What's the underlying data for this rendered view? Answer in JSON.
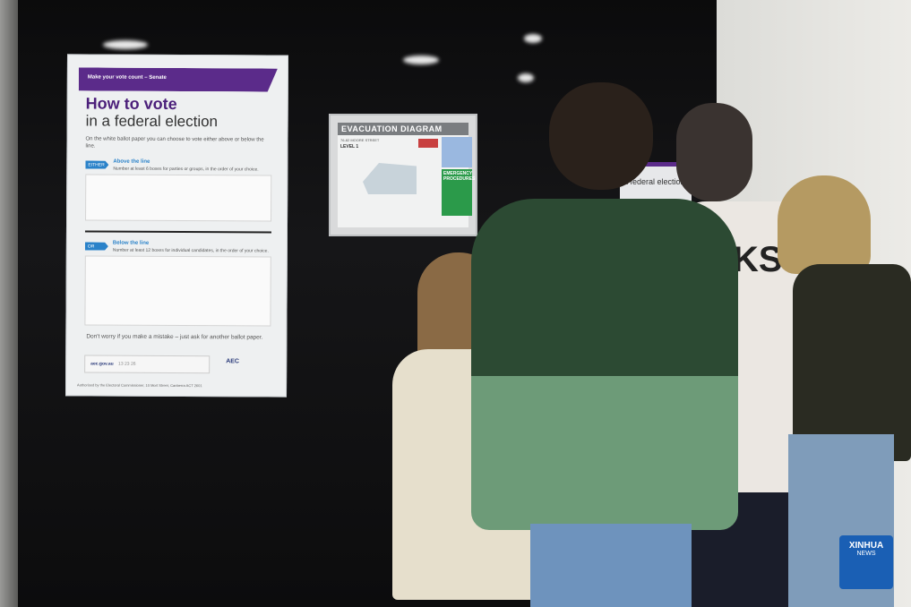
{
  "poster": {
    "band": "Make your vote count – Senate",
    "title": "How to vote",
    "subtitle": "in a federal election",
    "intro": "On the white ballot paper you can choose to vote either above or below the line.",
    "option1_tag": "EITHER",
    "option1_heading": "Above the line",
    "option1_text": "Number at least 6 boxes for parties or groups, in the order of your choice.",
    "option2_tag": "OR",
    "option2_heading": "Below the line",
    "option2_text": "Number at least 12 boxes for individual candidates, in the order of your choice.",
    "mistake": "Don't worry if you make a mistake – just ask for another ballot paper.",
    "website": "aec.gov.au",
    "phone": "13 23 26",
    "logo": "AEC",
    "authorised": "Authorised by the Electoral Commissioner, 10 Mort Street, Canberra ACT 2601"
  },
  "evacuation": {
    "title": "EVACUATION DIAGRAM",
    "street": "76-82 MOORE STREET",
    "level": "LEVEL 1",
    "procedures": "EMERGENCY PROCEDURES"
  },
  "second_poster": {
    "text": "a federal election"
  },
  "shirt_text": "KSC",
  "watermark": {
    "brand": "XINHUA",
    "sub": "NEWS"
  },
  "colors": {
    "aec_purple": "#5b2b8a",
    "aec_blue": "#2a82c9",
    "xinhua_blue": "#1a5fb4"
  }
}
